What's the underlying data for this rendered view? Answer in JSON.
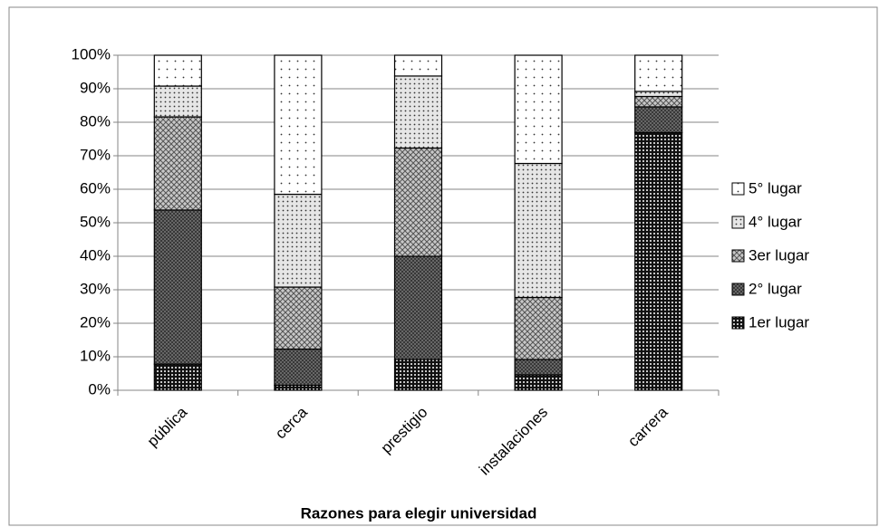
{
  "chart_data": {
    "type": "bar",
    "stacked": true,
    "x_label": "Razones para elegir universidad",
    "categories": [
      "pública",
      "cerca",
      "prestigio",
      "instalaciones",
      "carrera"
    ],
    "series": [
      {
        "name": "1er lugar",
        "color": "#111111",
        "values": [
          7.8,
          1.5,
          9.2,
          4.6,
          76.9
        ]
      },
      {
        "name": "2° lugar",
        "color": "#7a7a7a",
        "values": [
          46,
          10.8,
          30.8,
          4.6,
          7.7
        ]
      },
      {
        "name": "3er lugar",
        "color": "#c8c8c8",
        "values": [
          27.8,
          18.5,
          32.3,
          18.5,
          3.1
        ]
      },
      {
        "name": "4° lugar",
        "color": "#e6e6e6",
        "values": [
          9.2,
          27.7,
          21.5,
          40,
          1.5
        ]
      },
      {
        "name": "5° lugar",
        "color": "#ffffff",
        "values": [
          9.2,
          41.5,
          6.2,
          32.3,
          10.8
        ]
      }
    ],
    "ylim": [
      0,
      100
    ],
    "yticks": [
      {
        "value": 0,
        "label": "0%"
      },
      {
        "value": 10,
        "label": "10%"
      },
      {
        "value": 20,
        "label": "20%"
      },
      {
        "value": 30,
        "label": "30%"
      },
      {
        "value": 40,
        "label": "40%"
      },
      {
        "value": 50,
        "label": "50%"
      },
      {
        "value": 60,
        "label": "60%"
      },
      {
        "value": 70,
        "label": "70%"
      },
      {
        "value": 80,
        "label": "80%"
      },
      {
        "value": 90,
        "label": "90%"
      },
      {
        "value": 100,
        "label": "100%"
      }
    ],
    "grid": true,
    "legend": "right"
  }
}
